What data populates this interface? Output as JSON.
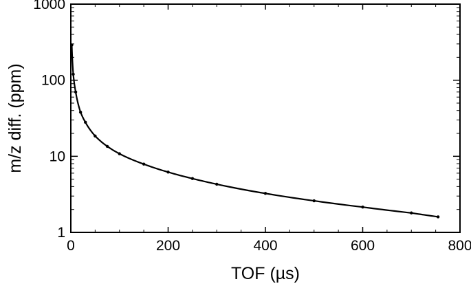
{
  "chart_data": {
    "type": "line",
    "title": "",
    "xlabel": "TOF (µs)",
    "ylabel": "m/z diff. (ppm)",
    "xlim": [
      0,
      800
    ],
    "ylim": [
      1,
      1000
    ],
    "y_scale": "log",
    "grid": false,
    "legend": "none",
    "x_ticks": [
      0,
      200,
      400,
      600,
      800
    ],
    "x_tick_labels": [
      "0",
      "200",
      "400",
      "600",
      "800"
    ],
    "y_ticks": [
      1,
      10,
      100,
      1000
    ],
    "y_tick_labels": [
      "1",
      "10",
      "100",
      "1000"
    ],
    "series": [
      {
        "x": [
          2,
          5,
          10,
          20,
          30,
          50,
          75,
          100,
          150,
          200,
          250,
          300,
          400,
          500,
          600,
          700,
          755
        ],
        "y": [
          290,
          120,
          70,
          38,
          28,
          18.5,
          13.5,
          10.8,
          7.9,
          6.2,
          5.1,
          4.3,
          3.25,
          2.6,
          2.15,
          1.8,
          1.6
        ]
      }
    ],
    "colors": {
      "line": "#000000",
      "axes": "#000000"
    }
  }
}
